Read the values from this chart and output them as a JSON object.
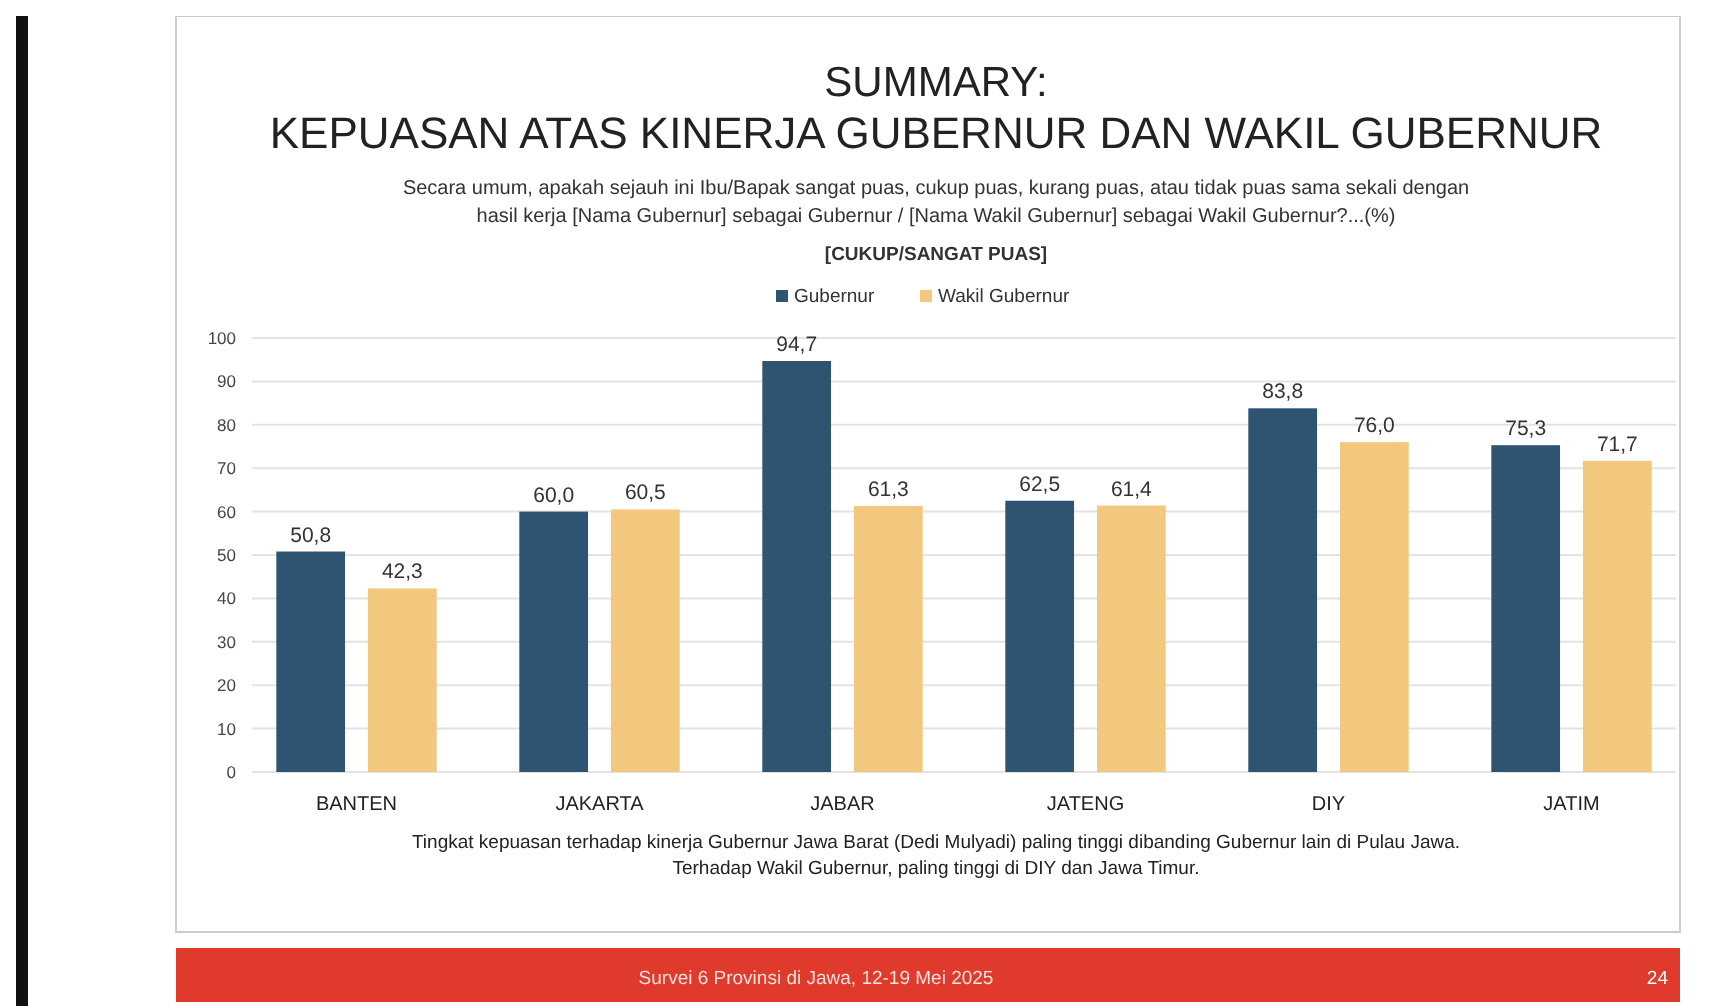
{
  "chart_data": {
    "type": "bar",
    "title": "SUMMARY:\nKEPUASAN ATAS KINERJA GUBERNUR DAN WAKIL GUBERNUR",
    "subtitle": "Secara umum, apakah sejauh ini Ibu/Bapak sangat puas, cukup puas, kurang puas, atau tidak puas sama sekali dengan\nhasil kerja [Nama Gubernur] sebagai Gubernur / [Nama Wakil Gubernur] sebagai Wakil Gubernur?...(%)\n[CUKUP/SANGAT PUAS]",
    "categories": [
      "BANTEN",
      "JAKARTA",
      "JABAR",
      "JATENG",
      "DIY",
      "JATIM"
    ],
    "series": [
      {
        "name": "Gubernur",
        "color": "#2e5472",
        "values": [
          50.8,
          60.0,
          94.7,
          62.5,
          83.8,
          75.3
        ],
        "value_labels": [
          "50,8",
          "60,0",
          "94,7",
          "62,5",
          "83,8",
          "75,3"
        ]
      },
      {
        "name": "Wakil Gubernur",
        "color": "#f2c77e",
        "values": [
          42.3,
          60.5,
          61.3,
          61.4,
          76.0,
          71.7
        ],
        "value_labels": [
          "42,3",
          "60,5",
          "61,3",
          "61,4",
          "76,0",
          "71,7"
        ]
      }
    ],
    "ylim": [
      0,
      100
    ],
    "yticks": [
      0,
      10,
      20,
      30,
      40,
      50,
      60,
      70,
      80,
      90,
      100
    ],
    "grid": "y",
    "legend": "top",
    "annotations": [
      "Tingkat kepuasan terhadap kinerja Gubernur Jawa Barat (Dedi Mulyadi) paling tinggi dibanding Gubernur lain di Pulau Jawa.\nTerhadap Wakil Gubernur, paling tinggi di DIY dan Jawa Timur.",
      "Survei 6 Provinsi di Jawa, 12-19 Mei 2025",
      "24"
    ]
  }
}
